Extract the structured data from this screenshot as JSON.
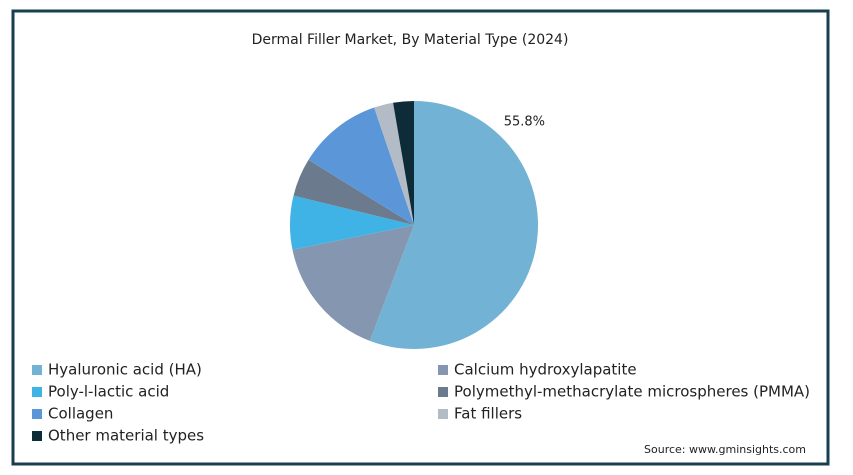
{
  "chart_data": {
    "type": "pie",
    "title": "Dermal Filler Market, By Material Type (2024)",
    "categories": [
      "Hyaluronic acid (HA)",
      "Calcium hydroxylapatite",
      "Poly-l-lactic acid",
      "Polymethyl-methacrylate microspheres (PMMA)",
      "Collagen",
      "Fat fillers",
      "Other material types"
    ],
    "values": [
      55.8,
      16,
      7,
      5,
      11,
      2.5,
      2.7
    ],
    "value_labels": [
      "55.8%",
      null,
      null,
      null,
      null,
      null,
      null
    ],
    "colors": [
      "#72b2d4",
      "#8597b0",
      "#3fb3e6",
      "#6b7a8c",
      "#5b97d8",
      "#b3bcc6",
      "#0e2b38"
    ],
    "source": "Source: www.gminsights.com"
  }
}
